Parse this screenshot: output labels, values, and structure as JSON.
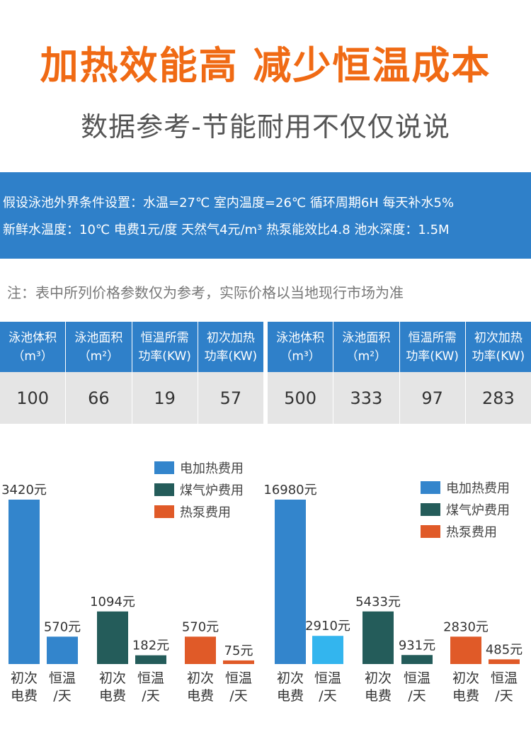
{
  "header": {
    "title": "加热效能高 减少恒温成本",
    "subtitle": "数据参考-节能耐用不仅仅说说"
  },
  "conditions": {
    "line1": "假设泳池外界条件设置：水温=27℃ 室内温度=26℃ 循环周期6H 每天补水5%",
    "line2": "新鲜水温度：10℃ 电费1元/度 天然气4元/m³ 热泵能效比4.8 池水深度：1.5M"
  },
  "note": "注：表中所列价格参数仅为参考，实际价格以当地现行市场为准",
  "tables": [
    {
      "headers": [
        [
          "泳池体积",
          "（m³）"
        ],
        [
          "泳池面积",
          "（m²）"
        ],
        [
          "恒温所需",
          "功率(KW)"
        ],
        [
          "初次加热",
          "功率(KW)"
        ]
      ],
      "values": [
        "100",
        "66",
        "19",
        "57"
      ]
    },
    {
      "headers": [
        [
          "泳池体积",
          "（m³）"
        ],
        [
          "泳池面积",
          "（m²）"
        ],
        [
          "恒温所需",
          "功率(KW)"
        ],
        [
          "初次加热",
          "功率(KW)"
        ]
      ],
      "values": [
        "500",
        "333",
        "97",
        "283"
      ]
    }
  ],
  "colors": {
    "accent_orange": "#f06a14",
    "blue": "#2f80c9",
    "electric_first": "#3385cc",
    "electric_daily_left": "#3385cc",
    "electric_daily_right": "#33b5ee",
    "gas": "#245c5a",
    "heatpump": "#e05a28"
  },
  "chart_data": [
    {
      "type": "bar",
      "legend": [
        "电加热费用",
        "煤气炉费用",
        "热泵费用"
      ],
      "legend_position": "top-right",
      "categories": [
        "初次\n电费",
        "恒温\n/天",
        "初次\n电费",
        "恒温\n/天",
        "初次\n电费",
        "恒温\n/天"
      ],
      "values": [
        3420,
        570,
        1094,
        182,
        570,
        75
      ],
      "labels": [
        "3420元",
        "570元",
        "1094元",
        "182元",
        "570元",
        "75元"
      ],
      "series_index": [
        0,
        0,
        1,
        1,
        2,
        2
      ],
      "ylim": [
        0,
        3420
      ],
      "grid": false
    },
    {
      "type": "bar",
      "legend": [
        "电加热费用",
        "煤气炉费用",
        "热泵费用"
      ],
      "legend_position": "top-right",
      "categories": [
        "初次\n电费",
        "恒温\n/天",
        "初次\n电费",
        "恒温\n/天",
        "初次\n电费",
        "恒温\n/天"
      ],
      "values": [
        16980,
        2910,
        5433,
        931,
        2830,
        485
      ],
      "labels": [
        "16980元",
        "2910元",
        "5433元",
        "931元",
        "2830元",
        "485元"
      ],
      "series_index": [
        0,
        0,
        1,
        1,
        2,
        2
      ],
      "ylim": [
        0,
        16980
      ],
      "grid": false
    }
  ]
}
